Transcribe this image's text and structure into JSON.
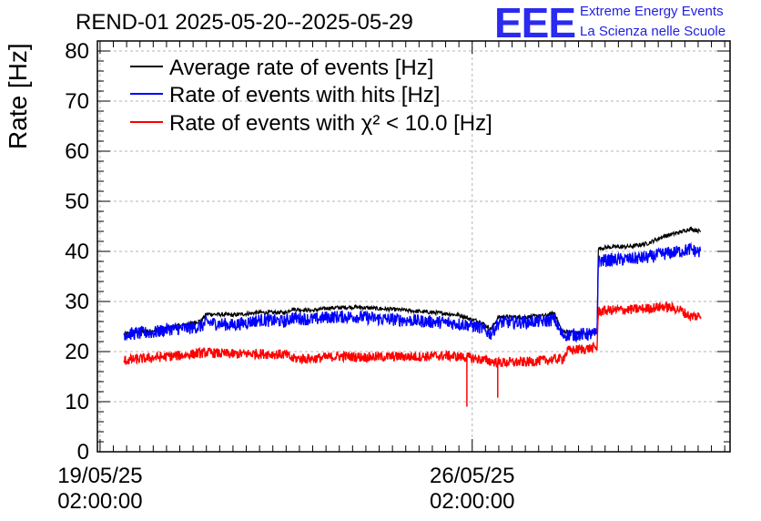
{
  "title": "REND-01 2025-05-20--2025-05-29",
  "logo": {
    "mark": "EEE",
    "line1": "Extreme Energy Events",
    "line2": "La Scienza nelle Scuole"
  },
  "chart_data": {
    "type": "line",
    "ylabel": "Rate [Hz]",
    "ylim": [
      0,
      82
    ],
    "yticks": [
      0,
      10,
      20,
      30,
      40,
      50,
      60,
      70,
      80
    ],
    "x_ticks": [
      {
        "date": "19/05/25",
        "time": "02:00:00",
        "day": 0
      },
      {
        "date": "26/05/25",
        "time": "02:00:00",
        "day": 7
      }
    ],
    "xlim_days": [
      -0.05,
      11.85
    ],
    "grid": true,
    "legend_position": "top-left",
    "series": [
      {
        "name": "Average rate of events [Hz]",
        "color": "#000000",
        "noise": 0.4,
        "points": [
          [
            0.45,
            23.5
          ],
          [
            1.0,
            24.2
          ],
          [
            1.3,
            24.8
          ],
          [
            1.6,
            25.3
          ],
          [
            1.9,
            26.2
          ],
          [
            2.0,
            27.5
          ],
          [
            2.5,
            27.3
          ],
          [
            3.0,
            27.8
          ],
          [
            3.5,
            27.8
          ],
          [
            3.6,
            28.5
          ],
          [
            4.0,
            28.2
          ],
          [
            4.3,
            28.7
          ],
          [
            4.8,
            28.9
          ],
          [
            5.2,
            28.6
          ],
          [
            5.7,
            28.3
          ],
          [
            6.0,
            28.0
          ],
          [
            6.5,
            27.6
          ],
          [
            6.8,
            27.2
          ],
          [
            6.95,
            26.5
          ],
          [
            7.15,
            26.0
          ],
          [
            7.35,
            24.5
          ],
          [
            7.5,
            26.9
          ],
          [
            8.0,
            26.9
          ],
          [
            8.4,
            27.2
          ],
          [
            8.55,
            27.8
          ],
          [
            8.65,
            25.0
          ],
          [
            8.7,
            24.0
          ],
          [
            9.0,
            23.7
          ],
          [
            9.35,
            23.7
          ],
          [
            9.37,
            40.5
          ],
          [
            9.5,
            40.8
          ],
          [
            10.0,
            41.0
          ],
          [
            10.3,
            41.6
          ],
          [
            10.6,
            43.0
          ],
          [
            10.9,
            43.8
          ],
          [
            11.1,
            44.5
          ],
          [
            11.3,
            44.0
          ]
        ]
      },
      {
        "name": "Rate of events with hits [Hz]",
        "color": "#0000ff",
        "noise": 1.3,
        "points": [
          [
            0.45,
            23.5
          ],
          [
            1.0,
            23.8
          ],
          [
            1.3,
            24.5
          ],
          [
            1.6,
            24.6
          ],
          [
            1.9,
            25.0
          ],
          [
            2.0,
            25.8
          ],
          [
            2.5,
            25.3
          ],
          [
            3.0,
            26.3
          ],
          [
            3.5,
            26.0
          ],
          [
            3.6,
            26.8
          ],
          [
            4.0,
            26.4
          ],
          [
            4.3,
            26.9
          ],
          [
            4.8,
            27.0
          ],
          [
            5.2,
            26.6
          ],
          [
            5.7,
            26.3
          ],
          [
            6.0,
            26.1
          ],
          [
            6.5,
            25.8
          ],
          [
            6.8,
            25.5
          ],
          [
            6.95,
            25.3
          ],
          [
            7.15,
            24.8
          ],
          [
            7.35,
            23.5
          ],
          [
            7.5,
            25.8
          ],
          [
            8.0,
            25.9
          ],
          [
            8.4,
            26.1
          ],
          [
            8.55,
            26.5
          ],
          [
            8.65,
            24.0
          ],
          [
            8.7,
            23.3
          ],
          [
            9.0,
            23.4
          ],
          [
            9.35,
            23.5
          ],
          [
            9.37,
            38.0
          ],
          [
            9.5,
            38.2
          ],
          [
            10.0,
            38.5
          ],
          [
            10.3,
            38.8
          ],
          [
            10.6,
            39.5
          ],
          [
            10.9,
            40.0
          ],
          [
            11.1,
            40.4
          ],
          [
            11.3,
            39.8
          ]
        ]
      },
      {
        "name": "Rate of events with χ² < 10.0 [Hz]",
        "color": "#ff0000",
        "noise": 1.0,
        "points": [
          [
            0.45,
            18.2
          ],
          [
            1.0,
            18.8
          ],
          [
            1.5,
            19.2
          ],
          [
            2.0,
            19.8
          ],
          [
            2.5,
            19.5
          ],
          [
            3.0,
            19.6
          ],
          [
            3.5,
            19.4
          ],
          [
            3.6,
            18.6
          ],
          [
            4.0,
            18.6
          ],
          [
            4.5,
            19.1
          ],
          [
            5.0,
            18.9
          ],
          [
            5.5,
            19.0
          ],
          [
            6.0,
            19.0
          ],
          [
            6.5,
            19.2
          ],
          [
            6.95,
            18.8
          ],
          [
            7.5,
            17.8
          ],
          [
            8.0,
            17.9
          ],
          [
            8.5,
            18.4
          ],
          [
            8.7,
            18.6
          ],
          [
            8.8,
            20.2
          ],
          [
            9.0,
            20.4
          ],
          [
            9.35,
            20.8
          ],
          [
            9.37,
            28.0
          ],
          [
            9.5,
            28.2
          ],
          [
            10.0,
            28.4
          ],
          [
            10.3,
            28.6
          ],
          [
            10.6,
            29.0
          ],
          [
            10.9,
            28.4
          ],
          [
            11.1,
            27.0
          ],
          [
            11.3,
            27.1
          ]
        ]
      }
    ],
    "annotations_note": "",
    "dips": [
      {
        "series": 2,
        "day": 6.9,
        "value": 9.0
      },
      {
        "series": 2,
        "day": 7.48,
        "value": 10.8
      }
    ]
  }
}
